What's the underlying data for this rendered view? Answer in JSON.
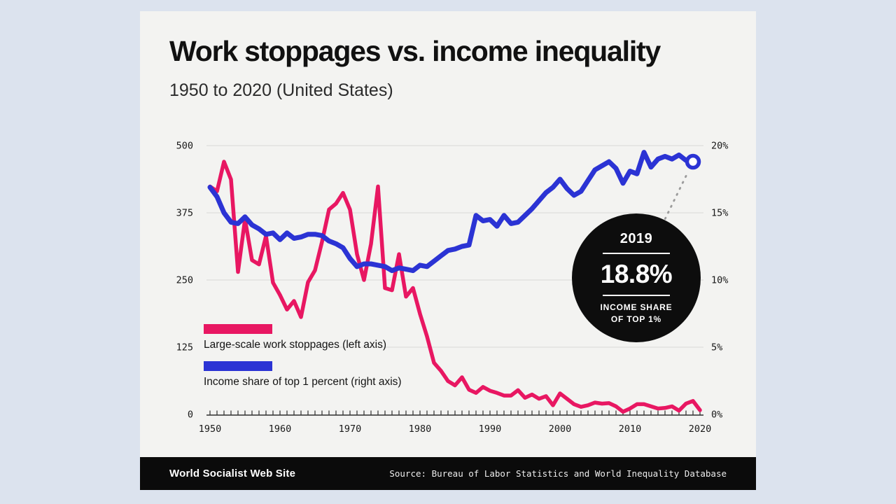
{
  "page": {
    "background": "#dce3ee",
    "card_background": "#f3f3f1"
  },
  "header": {
    "title": "Work stoppages vs. income inequality",
    "subtitle": "1950 to 2020 (United States)"
  },
  "legend": [
    {
      "label": "Large-scale work stoppages (left axis)",
      "color": "#e81762"
    },
    {
      "label": "Income share of top 1 percent (right axis)",
      "color": "#2b33d4"
    }
  ],
  "callout": {
    "year": "2019",
    "value": "18.8%",
    "caption_line1": "INCOME SHARE",
    "caption_line2": "OF TOP 1%"
  },
  "footer": {
    "brand": "World Socialist Web Site",
    "source": "Source: Bureau of Labor Statistics and World Inequality Database"
  },
  "chart_data": {
    "type": "line",
    "title": "Work stoppages vs. income inequality",
    "subtitle": "1950 to 2020 (United States)",
    "x_range": [
      1950,
      2020
    ],
    "x": [
      1950,
      1951,
      1952,
      1953,
      1954,
      1955,
      1956,
      1957,
      1958,
      1959,
      1960,
      1961,
      1962,
      1963,
      1964,
      1965,
      1966,
      1967,
      1968,
      1969,
      1970,
      1971,
      1972,
      1973,
      1974,
      1975,
      1976,
      1977,
      1978,
      1979,
      1980,
      1981,
      1982,
      1983,
      1984,
      1985,
      1986,
      1987,
      1988,
      1989,
      1990,
      1991,
      1992,
      1993,
      1994,
      1995,
      1996,
      1997,
      1998,
      1999,
      2000,
      2001,
      2002,
      2003,
      2004,
      2005,
      2006,
      2007,
      2008,
      2009,
      2010,
      2011,
      2012,
      2013,
      2014,
      2015,
      2016,
      2017,
      2018,
      2019,
      2020
    ],
    "x_ticks_labeled": [
      1950,
      1960,
      1970,
      1980,
      1990,
      2000,
      2010,
      2020
    ],
    "left_axis": {
      "ticks": [
        0,
        125,
        250,
        375,
        500
      ],
      "range": [
        0,
        500
      ]
    },
    "right_axis": {
      "ticks": [
        "0%",
        "5%",
        "10%",
        "15%",
        "20%"
      ],
      "range": [
        0,
        20
      ]
    },
    "grid": true,
    "legend_position": "inside-left",
    "series": [
      {
        "name": "Large-scale work stoppages (left axis)",
        "axis": "left",
        "color": "#e81762",
        "values": [
          424,
          415,
          470,
          437,
          265,
          363,
          287,
          279,
          332,
          245,
          222,
          195,
          211,
          181,
          246,
          268,
          321,
          381,
          392,
          412,
          381,
          298,
          250,
          317,
          424,
          235,
          231,
          298,
          219,
          235,
          187,
          145,
          96,
          81,
          62,
          54,
          69,
          46,
          40,
          51,
          44,
          40,
          35,
          35,
          45,
          31,
          37,
          29,
          34,
          17,
          39,
          29,
          19,
          14,
          17,
          22,
          20,
          21,
          15,
          5,
          11,
          19,
          19,
          15,
          11,
          12,
          15,
          7,
          20,
          25,
          8
        ]
      },
      {
        "name": "Income share of top 1 percent (right axis)",
        "axis": "right",
        "color": "#2b33d4",
        "end_marker": {
          "year": 2019,
          "value": 18.8
        },
        "values": [
          16.9,
          16.2,
          15.0,
          14.3,
          14.2,
          14.7,
          14.1,
          13.8,
          13.4,
          13.5,
          13.0,
          13.5,
          13.1,
          13.2,
          13.4,
          13.4,
          13.3,
          12.9,
          12.7,
          12.4,
          11.6,
          11.0,
          11.2,
          11.2,
          11.1,
          11.0,
          10.7,
          10.9,
          10.8,
          10.7,
          11.1,
          11.0,
          11.4,
          11.8,
          12.2,
          12.3,
          12.5,
          12.6,
          14.8,
          14.4,
          14.5,
          14.0,
          14.8,
          14.2,
          14.3,
          14.8,
          15.3,
          15.9,
          16.5,
          16.9,
          17.5,
          16.8,
          16.3,
          16.6,
          17.4,
          18.2,
          18.5,
          18.8,
          18.3,
          17.2,
          18.1,
          17.9,
          19.5,
          18.4,
          19.0,
          19.2,
          19.0,
          19.3,
          18.9,
          18.8,
          null
        ]
      }
    ]
  }
}
